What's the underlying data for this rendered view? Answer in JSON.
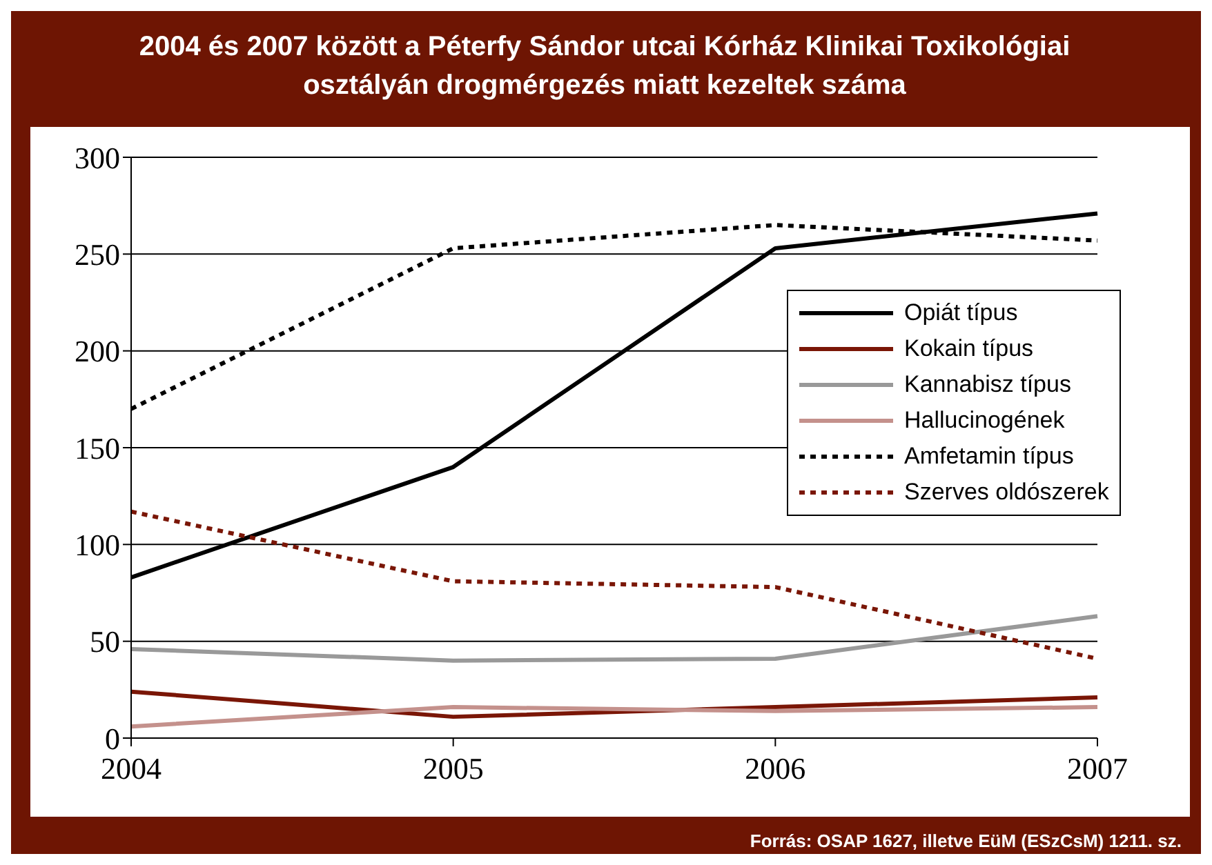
{
  "chart_data": {
    "type": "line",
    "title": "2004 és 2007 között a Péterfy Sándor utcai Kórház Klinikai Toxikológiai osztályán drogmérgezés miatt kezeltek száma",
    "categories": [
      "2004",
      "2005",
      "2006",
      "2007"
    ],
    "series": [
      {
        "name": "Opiát típus",
        "color": "#000000",
        "line_style": "solid",
        "values": [
          83,
          140,
          253,
          271
        ]
      },
      {
        "name": "Kokain típus",
        "color": "#7a1606",
        "line_style": "solid",
        "values": [
          24,
          11,
          16,
          21
        ]
      },
      {
        "name": "Kannabisz típus",
        "color": "#999999",
        "line_style": "solid",
        "values": [
          46,
          40,
          41,
          63
        ]
      },
      {
        "name": "Hallucinogének",
        "color": "#c4918c",
        "line_style": "solid",
        "values": [
          6,
          16,
          14,
          16
        ]
      },
      {
        "name": "Amfetamin típus",
        "color": "#000000",
        "line_style": "dashed",
        "values": [
          170,
          253,
          265,
          257
        ]
      },
      {
        "name": "Szerves oldószerek",
        "color": "#7a1606",
        "line_style": "dashed",
        "values": [
          117,
          81,
          78,
          41
        ]
      }
    ],
    "ylim": [
      0,
      300
    ],
    "yticks": [
      0,
      50,
      100,
      150,
      200,
      250,
      300
    ],
    "grid": "y",
    "legend": "right",
    "annotations": [
      "Forrás: OSAP 1627, illetve EüM (ESzCsM) 1211. sz."
    ]
  }
}
